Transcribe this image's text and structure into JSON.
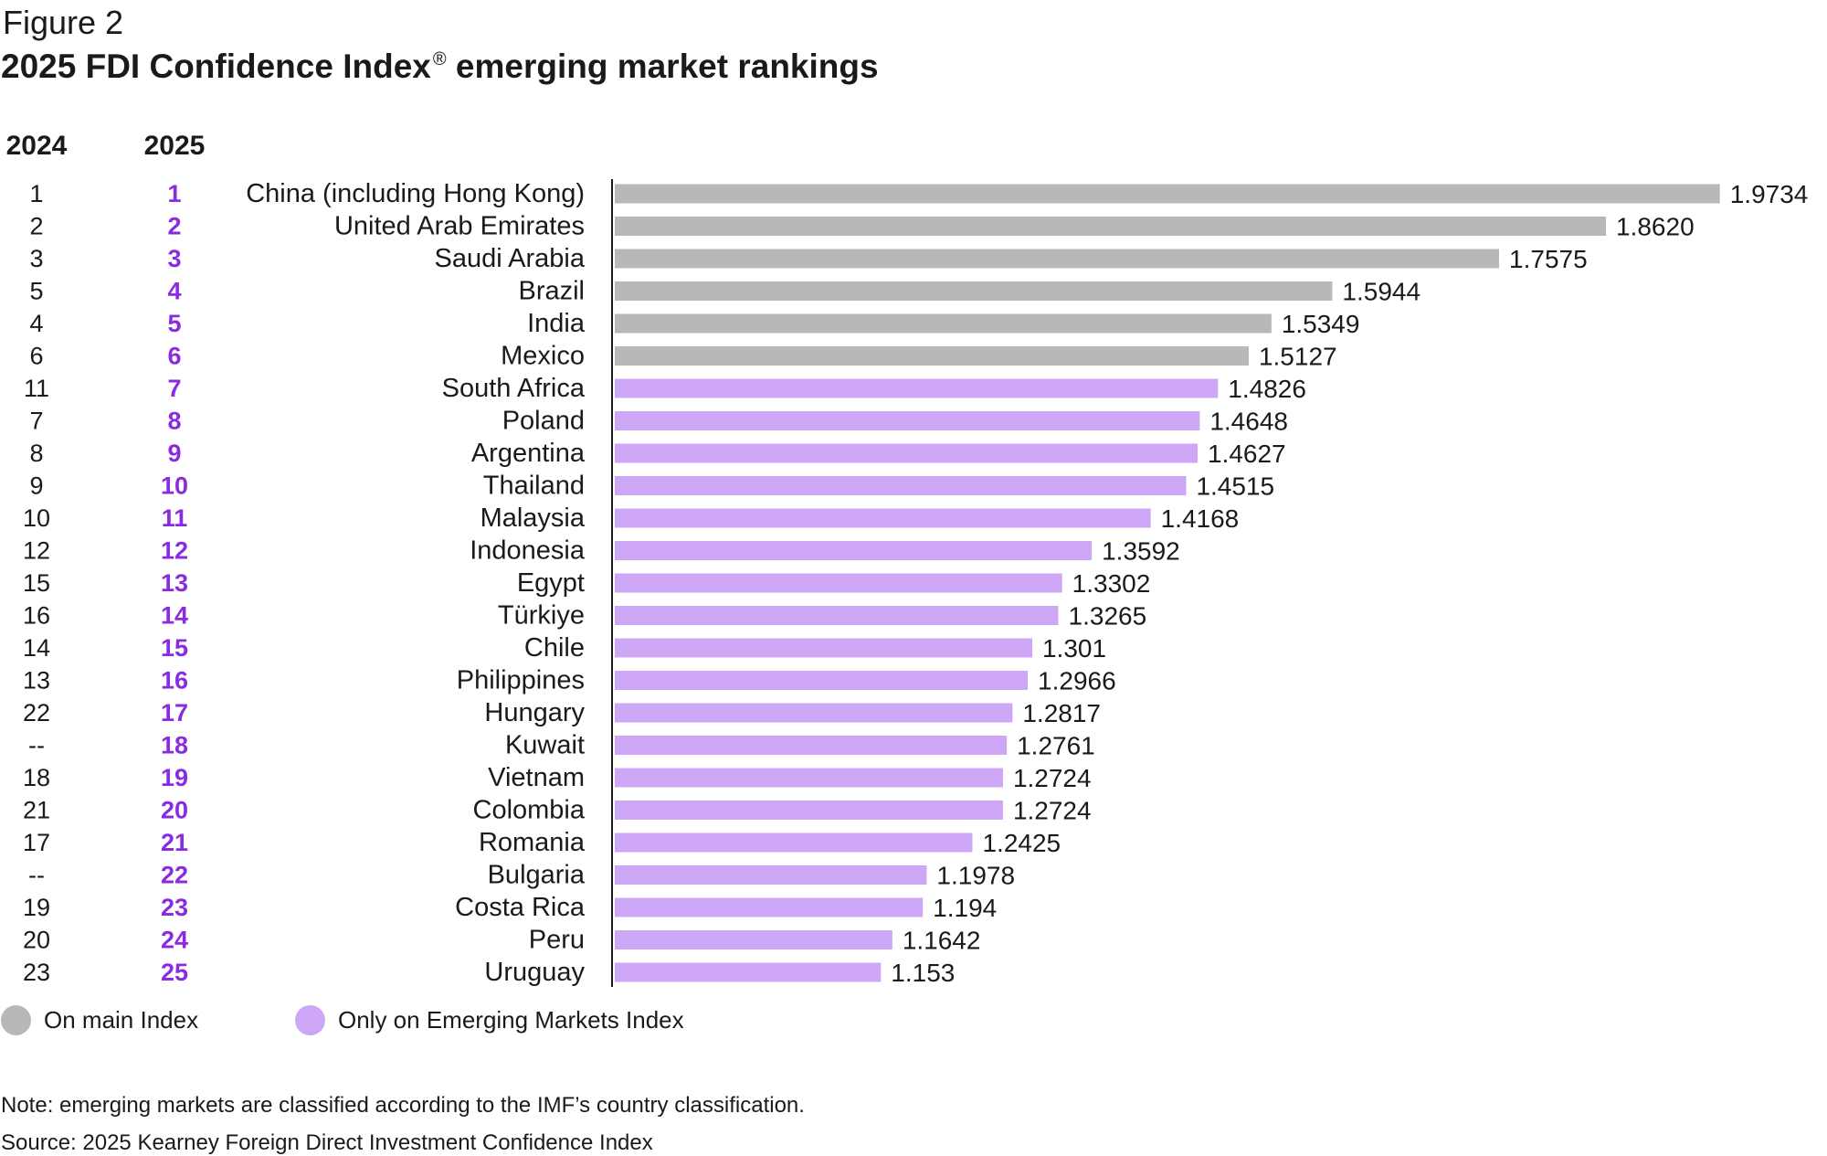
{
  "figure_label": "Figure 2",
  "title": "2025 FDI Confidence Index",
  "title_mark": "®",
  "title_suffix": " emerging market rankings",
  "colors": {
    "main_index": "#b8b8b8",
    "emerging_only": "#cda6f5",
    "rank_2025_text": "#8a2be2",
    "axis": "#1a1a1a"
  },
  "legend": [
    {
      "label": "On main Index",
      "color": "#b8b8b8"
    },
    {
      "label": "Only on Emerging Markets Index",
      "color": "#cda6f5"
    }
  ],
  "note": "Note: emerging markets are classified according to the IMF’s country classification.",
  "source": "Source: 2025 Kearney Foreign Direct Investment Confidence Index",
  "chart_data": {
    "type": "bar",
    "orientation": "horizontal",
    "column_headers": {
      "rank_2024": "2024",
      "rank_2025": "2025"
    },
    "xlim": [
      0,
      2.0
    ],
    "categories": [
      "China (including Hong Kong)",
      "United Arab Emirates",
      "Saudi Arabia",
      "Brazil",
      "India",
      "Mexico",
      "South Africa",
      "Poland",
      "Argentina",
      "Thailand",
      "Malaysia",
      "Indonesia",
      "Egypt",
      "Türkiye",
      "Chile",
      "Philippines",
      "Hungary",
      "Kuwait",
      "Vietnam",
      "Colombia",
      "Romania",
      "Bulgaria",
      "Costa Rica",
      "Peru",
      "Uruguay"
    ],
    "values": [
      1.9734,
      1.862,
      1.7575,
      1.5944,
      1.5349,
      1.5127,
      1.4826,
      1.4648,
      1.4627,
      1.4515,
      1.4168,
      1.3592,
      1.3302,
      1.3265,
      1.301,
      1.2966,
      1.2817,
      1.2761,
      1.2724,
      1.2724,
      1.2425,
      1.1978,
      1.194,
      1.1642,
      1.153
    ],
    "value_labels": [
      "1.9734",
      "1.8620",
      "1.7575",
      "1.5944",
      "1.5349",
      "1.5127",
      "1.4826",
      "1.4648",
      "1.4627",
      "1.4515",
      "1.4168",
      "1.3592",
      "1.3302",
      "1.3265",
      "1.301",
      "1.2966",
      "1.2817",
      "1.2761",
      "1.2724",
      "1.2724",
      "1.2425",
      "1.1978",
      "1.194",
      "1.1642",
      "1.153"
    ],
    "rank_2024": [
      "1",
      "2",
      "3",
      "5",
      "4",
      "6",
      "11",
      "7",
      "8",
      "9",
      "10",
      "12",
      "15",
      "16",
      "14",
      "13",
      "22",
      "--",
      "18",
      "21",
      "17",
      "--",
      "19",
      "20",
      "23"
    ],
    "rank_2025": [
      "1",
      "2",
      "3",
      "4",
      "5",
      "6",
      "7",
      "8",
      "9",
      "10",
      "11",
      "12",
      "13",
      "14",
      "15",
      "16",
      "17",
      "18",
      "19",
      "20",
      "21",
      "22",
      "23",
      "24",
      "25"
    ],
    "on_main_index": [
      true,
      true,
      true,
      true,
      true,
      true,
      false,
      false,
      false,
      false,
      false,
      false,
      false,
      false,
      false,
      false,
      false,
      false,
      false,
      false,
      false,
      false,
      false,
      false,
      false
    ]
  }
}
